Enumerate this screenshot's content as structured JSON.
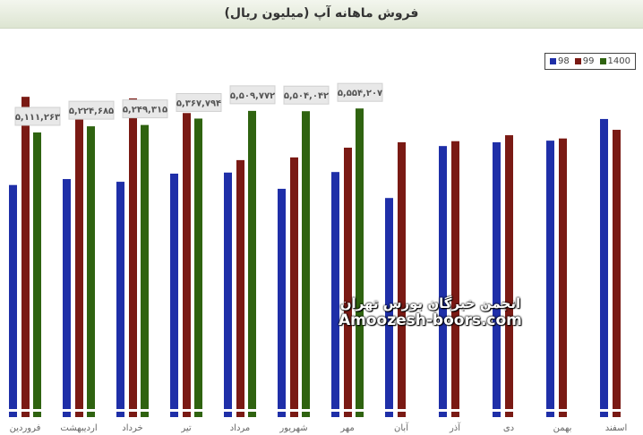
{
  "chart_data": {
    "type": "bar",
    "title": "فروش ماهانه آپ (میلیون ریال)",
    "categories": [
      "فروردین",
      "اردیبهشت",
      "خرداد",
      "تیر",
      "مرداد",
      "شهریور",
      "مهر",
      "آبان",
      "آذر",
      "دی",
      "بهمن",
      "اسفند"
    ],
    "series": [
      {
        "name": "98",
        "color": "#1f2fa8",
        "values": [
          4140000,
          4250000,
          4200000,
          4350000,
          4370000,
          4070000,
          4380000,
          3900000,
          4860000,
          4930000,
          4960000,
          5360000
        ]
      },
      {
        "name": "99",
        "color": "#7a1a14",
        "values": [
          5770000,
          5670000,
          5740000,
          5470000,
          4600000,
          4650000,
          4830000,
          4930000,
          4950000,
          5060000,
          5000000,
          5160000
        ]
      },
      {
        "name": "1400",
        "color": "#2f6310",
        "values": [
          5111263,
          5224685,
          5249315,
          5367794,
          5509772,
          5504042,
          5554207,
          null,
          null,
          null,
          null,
          null
        ]
      }
    ],
    "data_labels": [
      "۵,۱۱۱,۲۶۳",
      "۵,۲۲۴,۶۸۵",
      "۵,۲۴۹,۳۱۵",
      "۵,۳۶۷,۷۹۴",
      "۵,۵۰۹,۷۷۲",
      "۵,۵۰۴,۰۴۲",
      "۵,۵۵۴,۲۰۷"
    ],
    "ylim": [
      0,
      7500000
    ],
    "grid": false,
    "legend": "top-right"
  },
  "watermark": {
    "fa": "انجمن خبرگان بورس تهران",
    "en": "Amoozesh-boors.com"
  }
}
